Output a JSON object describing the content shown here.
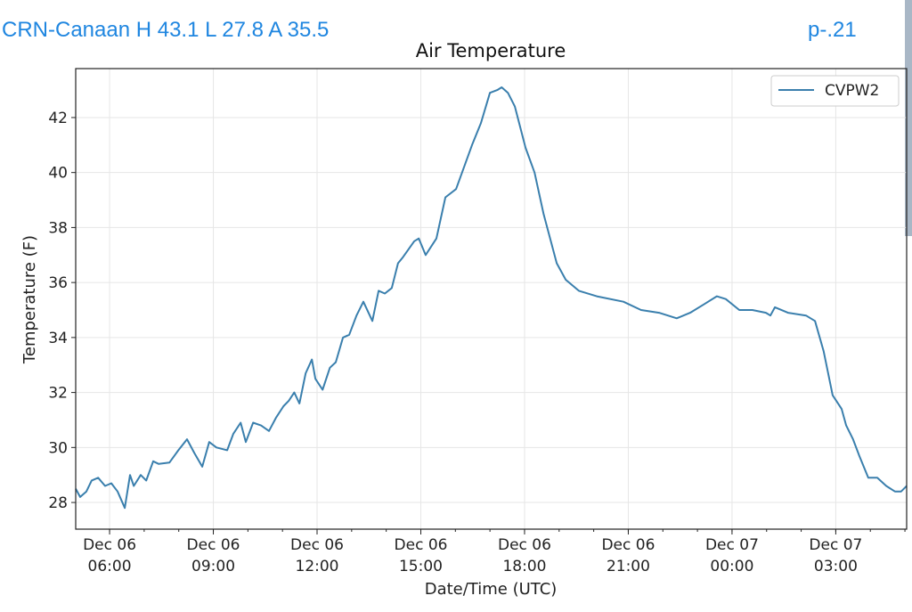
{
  "header": {
    "station_summary": "CRN-Canaan H 43.1 L 27.8 A 35.5",
    "page_indicator": "p-.21"
  },
  "chart_data": {
    "type": "line",
    "title": "Air Temperature",
    "xlabel": "Date/Time (UTC)",
    "ylabel": "Temperature (F)",
    "x_units": "hours since Dec 06 00:00 UTC",
    "xlim": [
      5.02,
      29.05
    ],
    "ylim": [
      27.03,
      43.78
    ],
    "grid": true,
    "legend_position": "top-right",
    "yticks": [
      28,
      30,
      32,
      34,
      36,
      38,
      40,
      42
    ],
    "ytick_labels": [
      "28",
      "30",
      "32",
      "34",
      "36",
      "38",
      "40",
      "42"
    ],
    "xticks": [
      6,
      9,
      12,
      15,
      18,
      21,
      24,
      27
    ],
    "xtick_labels": [
      [
        "Dec 06",
        "06:00"
      ],
      [
        "Dec 06",
        "09:00"
      ],
      [
        "Dec 06",
        "12:00"
      ],
      [
        "Dec 06",
        "15:00"
      ],
      [
        "Dec 06",
        "18:00"
      ],
      [
        "Dec 06",
        "21:00"
      ],
      [
        "Dec 07",
        "00:00"
      ],
      [
        "Dec 07",
        "03:00"
      ]
    ],
    "series": [
      {
        "name": "CVPW2",
        "color": "#3a7fad",
        "x": [
          5.02,
          5.15,
          5.33,
          5.48,
          5.67,
          5.87,
          6.05,
          6.23,
          6.44,
          6.59,
          6.7,
          6.9,
          7.06,
          7.26,
          7.42,
          7.73,
          7.99,
          8.24,
          8.45,
          8.68,
          8.88,
          9.09,
          9.4,
          9.58,
          9.79,
          9.94,
          10.15,
          10.38,
          10.61,
          10.82,
          11.03,
          11.18,
          11.34,
          11.49,
          11.67,
          11.85,
          11.95,
          12.16,
          12.37,
          12.54,
          12.75,
          12.93,
          13.14,
          13.34,
          13.6,
          13.78,
          13.96,
          14.16,
          14.34,
          14.47,
          14.81,
          14.94,
          15.14,
          15.45,
          15.71,
          16.02,
          16.48,
          16.74,
          17.0,
          17.21,
          17.34,
          17.52,
          17.72,
          18.03,
          18.29,
          18.55,
          18.93,
          19.19,
          19.57,
          20.09,
          20.86,
          21.37,
          21.89,
          22.4,
          22.79,
          23.18,
          23.56,
          23.82,
          24.21,
          24.59,
          24.98,
          25.11,
          25.24,
          25.62,
          26.14,
          26.4,
          26.65,
          26.91,
          27.17,
          27.3,
          27.5,
          27.68,
          27.94,
          28.2,
          28.46,
          28.71,
          28.89,
          29.05
        ],
        "y": [
          28.5,
          28.2,
          28.4,
          28.8,
          28.9,
          28.6,
          28.7,
          28.4,
          27.8,
          29.0,
          28.6,
          29.0,
          28.8,
          29.5,
          29.4,
          29.45,
          29.9,
          30.3,
          29.8,
          29.3,
          30.2,
          30.0,
          29.9,
          30.5,
          30.9,
          30.2,
          30.9,
          30.8,
          30.6,
          31.1,
          31.5,
          31.7,
          32.0,
          31.6,
          32.7,
          33.2,
          32.5,
          32.1,
          32.9,
          33.1,
          34.0,
          34.1,
          34.8,
          35.3,
          34.6,
          35.7,
          35.6,
          35.8,
          36.7,
          36.9,
          37.5,
          37.6,
          37.0,
          37.6,
          39.1,
          39.4,
          41.0,
          41.8,
          42.9,
          43.0,
          43.1,
          42.9,
          42.4,
          40.9,
          40.0,
          38.5,
          36.7,
          36.1,
          35.7,
          35.5,
          35.3,
          35.0,
          34.9,
          34.7,
          34.9,
          35.2,
          35.5,
          35.4,
          35.0,
          35.0,
          34.9,
          34.8,
          35.1,
          34.9,
          34.8,
          34.6,
          33.5,
          31.9,
          31.4,
          30.8,
          30.3,
          29.7,
          28.9,
          28.9,
          28.6,
          28.4,
          28.4,
          28.6
        ]
      }
    ]
  }
}
